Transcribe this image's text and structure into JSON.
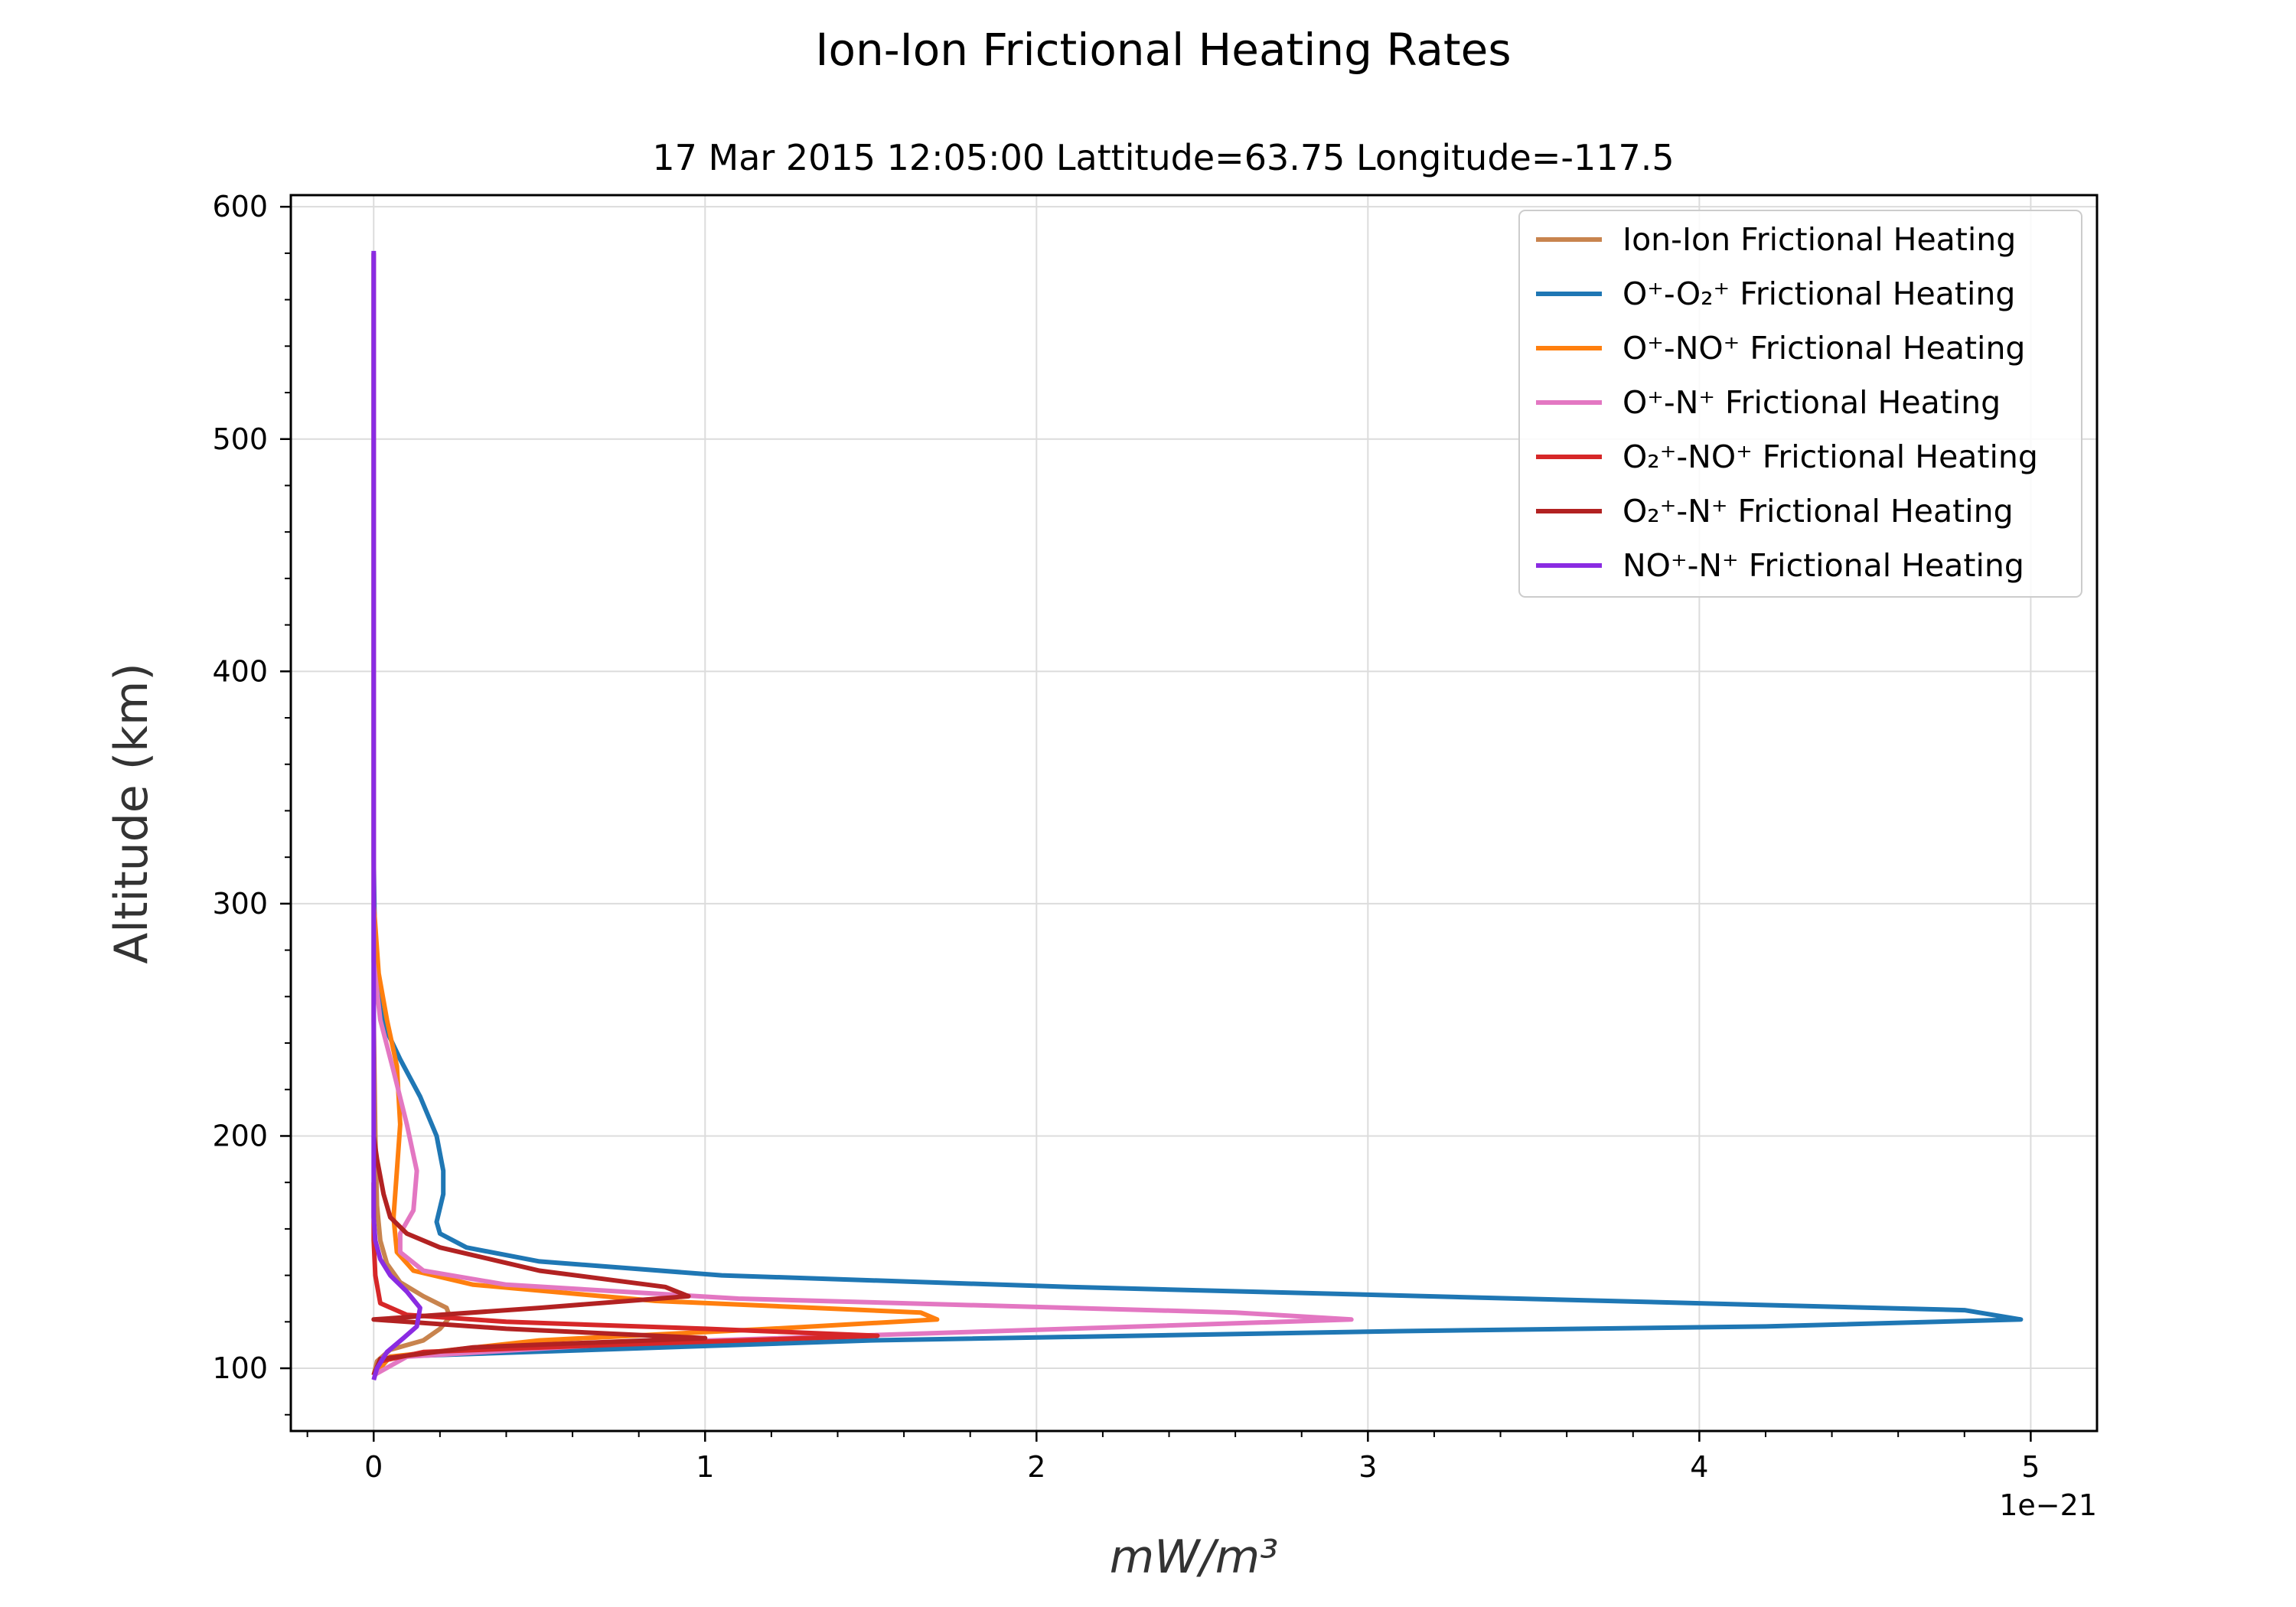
{
  "chart_data": {
    "type": "line",
    "title": "Ion-Ion Frictional Heating Rates",
    "subtitle": "17 Mar 2015 12:05:00 Lattitude=63.75 Longitude=-117.5",
    "xlabel": "mW/m³",
    "ylabel": "Altitude (km)",
    "x_offset_label": "1e−21",
    "x_scale": 1e-21,
    "xlim": [
      -0.25,
      5.2
    ],
    "ylim": [
      73,
      605
    ],
    "x_ticks": [
      0,
      1,
      2,
      3,
      4,
      5
    ],
    "x_tick_labels": [
      "0",
      "1",
      "2",
      "3",
      "4",
      "5"
    ],
    "y_ticks": [
      100,
      200,
      300,
      400,
      500,
      600
    ],
    "y_tick_labels": [
      "100",
      "200",
      "300",
      "400",
      "500",
      "600"
    ],
    "grid": true,
    "legend_position": "top-right",
    "series": [
      {
        "name": "Ion-Ion Frictional Heating",
        "color": "#c8844e",
        "points": [
          [
            0,
            97
          ],
          [
            0.01,
            103
          ],
          [
            0.05,
            108
          ],
          [
            0.15,
            112
          ],
          [
            0.2,
            117
          ],
          [
            0.23,
            122
          ],
          [
            0.22,
            126
          ],
          [
            0.15,
            131
          ],
          [
            0.08,
            137
          ],
          [
            0.04,
            145
          ],
          [
            0.02,
            155
          ],
          [
            0.01,
            170
          ],
          [
            0.005,
            200
          ],
          [
            0,
            250
          ],
          [
            0,
            300
          ]
        ]
      },
      {
        "name": "O⁺-O₂⁺ Frictional Heating",
        "color": "#1f77b4",
        "points": [
          [
            0,
            97
          ],
          [
            0.05,
            105
          ],
          [
            1.5,
            112
          ],
          [
            3.1,
            116
          ],
          [
            4.2,
            118
          ],
          [
            4.97,
            121
          ],
          [
            4.8,
            125
          ],
          [
            2.1,
            135
          ],
          [
            1.05,
            140
          ],
          [
            0.5,
            146
          ],
          [
            0.28,
            152
          ],
          [
            0.2,
            158
          ],
          [
            0.19,
            163
          ],
          [
            0.21,
            175
          ],
          [
            0.21,
            185
          ],
          [
            0.19,
            200
          ],
          [
            0.14,
            217
          ],
          [
            0.08,
            233
          ],
          [
            0.04,
            245
          ],
          [
            0.02,
            255
          ],
          [
            0.01,
            265
          ],
          [
            0.003,
            290
          ],
          [
            0,
            320
          ],
          [
            0,
            580
          ]
        ]
      },
      {
        "name": "O⁺-NO⁺ Frictional Heating",
        "color": "#ff7f0e",
        "points": [
          [
            0,
            97
          ],
          [
            0.05,
            105
          ],
          [
            0.5,
            112
          ],
          [
            1.2,
            117
          ],
          [
            1.7,
            121
          ],
          [
            1.65,
            124
          ],
          [
            0.85,
            129
          ],
          [
            0.3,
            136
          ],
          [
            0.12,
            142
          ],
          [
            0.07,
            150
          ],
          [
            0.06,
            165
          ],
          [
            0.07,
            185
          ],
          [
            0.08,
            205
          ],
          [
            0.07,
            230
          ],
          [
            0.04,
            250
          ],
          [
            0.015,
            270
          ],
          [
            0,
            300
          ],
          [
            0,
            580
          ]
        ]
      },
      {
        "name": "O⁺-N⁺ Frictional Heating",
        "color": "#e377c2",
        "points": [
          [
            0,
            97
          ],
          [
            0.1,
            105
          ],
          [
            0.8,
            111
          ],
          [
            2.1,
            117
          ],
          [
            2.95,
            121
          ],
          [
            2.6,
            124
          ],
          [
            1.1,
            130
          ],
          [
            0.4,
            136
          ],
          [
            0.15,
            142
          ],
          [
            0.08,
            150
          ],
          [
            0.08,
            158
          ],
          [
            0.12,
            168
          ],
          [
            0.13,
            185
          ],
          [
            0.1,
            205
          ],
          [
            0.06,
            228
          ],
          [
            0.02,
            250
          ],
          [
            0,
            275
          ],
          [
            0,
            580
          ]
        ]
      },
      {
        "name": "O₂⁺-NO⁺ Frictional Heating",
        "color": "#d62728",
        "points": [
          [
            0,
            97
          ],
          [
            0.02,
            103
          ],
          [
            0.15,
            107
          ],
          [
            0.7,
            110
          ],
          [
            1.52,
            114
          ],
          [
            1.0,
            117
          ],
          [
            0.4,
            120
          ],
          [
            0.1,
            123
          ],
          [
            0.02,
            128
          ],
          [
            0.005,
            140
          ],
          [
            0,
            155
          ],
          [
            0,
            180
          ]
        ]
      },
      {
        "name": "O₂⁺-N⁺ Frictional Heating",
        "color": "#b22222",
        "points": [
          [
            0,
            97
          ],
          [
            0.02,
            104
          ],
          [
            0.3,
            109
          ],
          [
            1.0,
            113
          ],
          [
            0.4,
            117
          ],
          [
            0,
            121
          ],
          [
            0.5,
            126
          ],
          [
            0.95,
            131
          ],
          [
            0.88,
            135
          ],
          [
            0.5,
            142
          ],
          [
            0.2,
            152
          ],
          [
            0.1,
            158
          ],
          [
            0.05,
            165
          ],
          [
            0.03,
            175
          ],
          [
            0.01,
            190
          ],
          [
            0,
            200
          ]
        ]
      },
      {
        "name": "NO⁺-N⁺ Frictional Heating",
        "color": "#8a2be2",
        "points": [
          [
            0,
            95
          ],
          [
            0.01,
            100
          ],
          [
            0.04,
            107
          ],
          [
            0.09,
            113
          ],
          [
            0.13,
            118
          ],
          [
            0.14,
            126
          ],
          [
            0.1,
            133
          ],
          [
            0.05,
            140
          ],
          [
            0.02,
            147
          ],
          [
            0.005,
            155
          ],
          [
            0,
            165
          ],
          [
            0,
            200
          ],
          [
            0,
            581
          ]
        ]
      }
    ]
  }
}
